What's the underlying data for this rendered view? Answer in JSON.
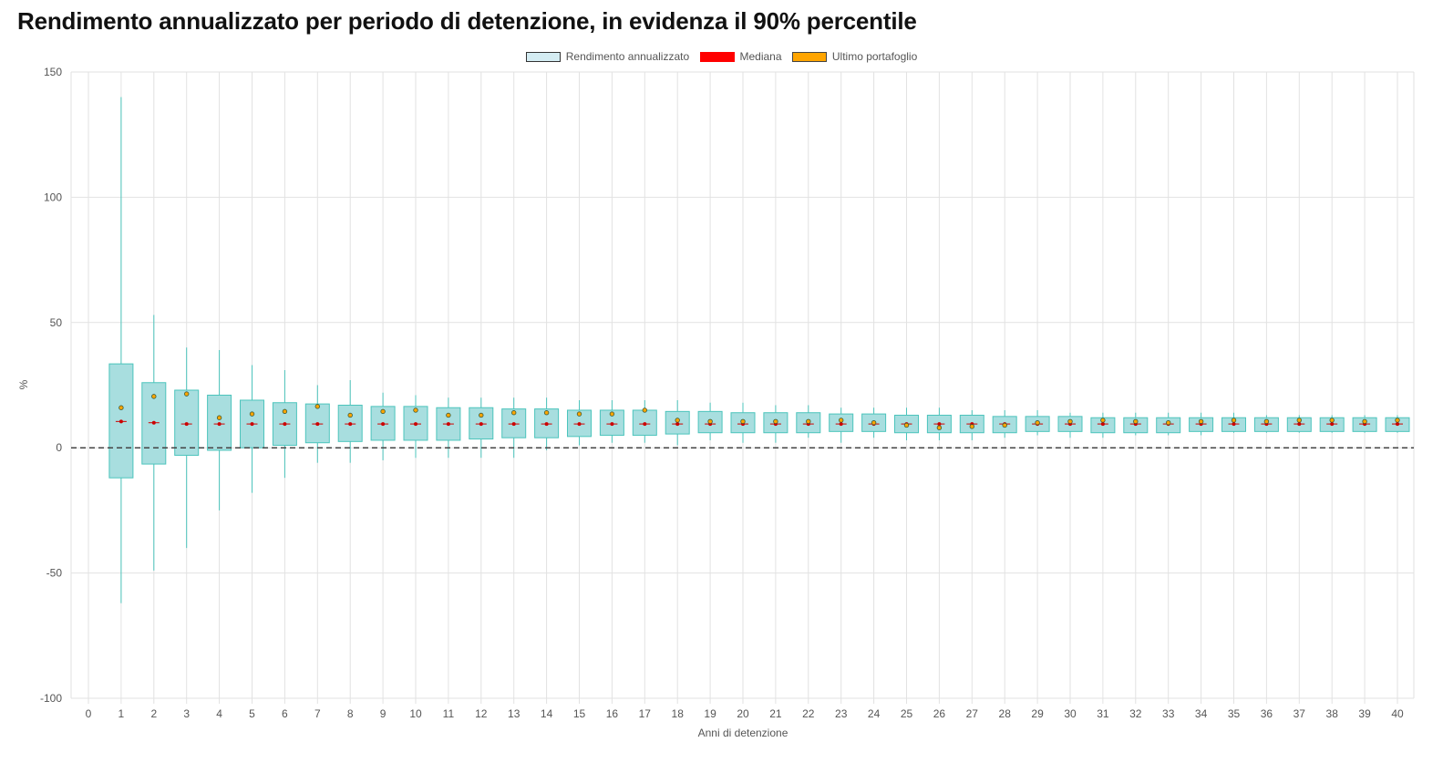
{
  "title": "Rendimento annualizzato per periodo di detenzione, in evidenza il 90% percentile",
  "legend": {
    "box_label": "Rendimento annualizzato",
    "median_label": "Mediana",
    "last_label": "Ultimo portafoglio"
  },
  "colors": {
    "box_fill": "#a8dedf",
    "box_stroke": "#4cc4bc",
    "median": "#cc0000",
    "last_marker": "#ffa500",
    "grid": "#e2e2e2",
    "zero_line": "#444444"
  },
  "chart_data": {
    "type": "boxplot",
    "title": "Rendimento annualizzato per periodo di detenzione, in evidenza il 90% percentile",
    "xlabel": "Anni di detenzione",
    "ylabel": "%",
    "ylim": [
      -100,
      150
    ],
    "yticks": [
      -100,
      -50,
      0,
      50,
      100,
      150
    ],
    "xticks": [
      0,
      1,
      2,
      3,
      4,
      5,
      6,
      7,
      8,
      9,
      10,
      11,
      12,
      13,
      14,
      15,
      16,
      17,
      18,
      19,
      20,
      21,
      22,
      23,
      24,
      25,
      26,
      27,
      28,
      29,
      30,
      31,
      32,
      33,
      34,
      35,
      36,
      37,
      38,
      39,
      40
    ],
    "grid": true,
    "legend_position": "top-center",
    "reference_line": {
      "y": 0,
      "style": "dashed"
    },
    "series": [
      {
        "name": "Rendimento annualizzato",
        "years": [
          1,
          2,
          3,
          4,
          5,
          6,
          7,
          8,
          9,
          10,
          11,
          12,
          13,
          14,
          15,
          16,
          17,
          18,
          19,
          20,
          21,
          22,
          23,
          24,
          25,
          26,
          27,
          28,
          29,
          30,
          31,
          32,
          33,
          34,
          35,
          36,
          37,
          38,
          39,
          40
        ],
        "min": [
          -62,
          -49,
          -40,
          -25,
          -18,
          -12,
          -6,
          -6,
          -5,
          -4,
          -4,
          -4,
          -4,
          -1,
          1,
          2,
          2,
          1,
          3,
          2,
          2,
          4,
          2,
          4,
          3,
          3,
          3,
          4,
          5,
          4,
          4,
          5,
          5,
          5,
          6,
          6,
          6,
          6,
          6,
          6
        ],
        "q1": [
          -12,
          -6.5,
          -3,
          -1,
          0,
          1,
          2,
          2.5,
          3,
          3,
          3,
          3.5,
          4,
          4,
          4.5,
          5,
          5,
          5.5,
          6,
          6,
          6,
          6,
          6.5,
          6.5,
          6,
          6,
          6,
          6,
          6.5,
          6.5,
          6,
          6,
          6,
          6.5,
          6.5,
          6.5,
          6.5,
          6.5,
          6.5,
          6.5
        ],
        "q3": [
          33.5,
          26,
          23,
          21,
          19,
          18,
          17.5,
          17,
          16.5,
          16.5,
          16,
          16,
          15.5,
          15.5,
          15,
          15,
          15,
          14.5,
          14.5,
          14,
          14,
          14,
          13.5,
          13.5,
          13,
          13,
          13,
          12.5,
          12.5,
          12.5,
          12,
          12,
          12,
          12,
          12,
          12,
          12,
          12,
          12,
          12
        ],
        "max": [
          140,
          53,
          40,
          39,
          33,
          31,
          25,
          27,
          22,
          21,
          20,
          20,
          20,
          20,
          19,
          19,
          19,
          19,
          18,
          18,
          17,
          17,
          16,
          16,
          16,
          16,
          15,
          15,
          15,
          14,
          14,
          14,
          14,
          14,
          14,
          13,
          13,
          13,
          13,
          13
        ]
      },
      {
        "name": "Mediana",
        "values": [
          10.5,
          10,
          9.5,
          9.5,
          9.5,
          9.5,
          9.5,
          9.5,
          9.5,
          9.5,
          9.5,
          9.5,
          9.5,
          9.5,
          9.5,
          9.5,
          9.5,
          9.5,
          9.5,
          9.5,
          9.5,
          9.5,
          9.5,
          9.5,
          9.5,
          9.5,
          9.5,
          9.5,
          9.5,
          9.5,
          9.5,
          9.5,
          9.5,
          9.5,
          9.5,
          9.5,
          9.5,
          9.5,
          9.5,
          9.5
        ]
      },
      {
        "name": "Ultimo portafoglio",
        "values": [
          16,
          20.5,
          21.5,
          12,
          13.5,
          14.5,
          16.5,
          13,
          14.5,
          15,
          13,
          13,
          14,
          14,
          13.5,
          13.5,
          15,
          11,
          10.5,
          10.5,
          10.5,
          10.5,
          11,
          10,
          9,
          8,
          8.5,
          9,
          10,
          10.5,
          11,
          10.5,
          10,
          10.5,
          11,
          10.5,
          11,
          11,
          10.5,
          11
        ]
      }
    ]
  }
}
